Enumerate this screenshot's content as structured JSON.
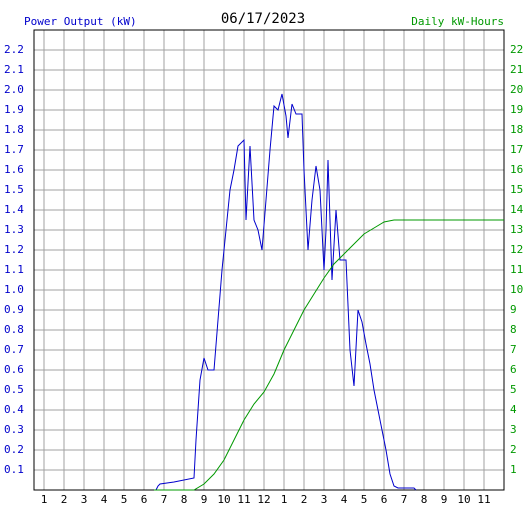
{
  "chart_data": {
    "type": "line",
    "title": "06/17/2023",
    "y_label": "Power Output (kW)",
    "y2_label": "Daily kW-Hours",
    "grid": true,
    "xlim": [
      0.5,
      24
    ],
    "xticks": [
      1,
      2,
      3,
      4,
      5,
      6,
      7,
      8,
      9,
      10,
      11,
      12,
      {
        "value": 13,
        "label": "1"
      },
      {
        "value": 14,
        "label": "2"
      },
      {
        "value": 15,
        "label": "3"
      },
      {
        "value": 16,
        "label": "4"
      },
      {
        "value": 17,
        "label": "5"
      },
      {
        "value": 18,
        "label": "6"
      },
      {
        "value": 19,
        "label": "7"
      },
      {
        "value": 20,
        "label": "8"
      },
      {
        "value": 21,
        "label": "9"
      },
      {
        "value": 22,
        "label": "10"
      },
      {
        "value": 23,
        "label": "11"
      }
    ],
    "ylim": [
      0,
      2.3
    ],
    "yticks": [
      0.1,
      0.2,
      0.3,
      0.4,
      0.5,
      0.6,
      0.7,
      0.8,
      0.9,
      {
        "value": 1,
        "label": "1.0"
      },
      1.1,
      1.2,
      1.3,
      1.4,
      1.5,
      1.6,
      1.7,
      1.8,
      1.9,
      {
        "value": 2,
        "label": "2.0"
      },
      2.1,
      2.2
    ],
    "y2lim": [
      0,
      23
    ],
    "y2ticks": [
      1,
      2,
      3,
      4,
      5,
      6,
      7,
      8,
      9,
      10,
      11,
      12,
      13,
      14,
      15,
      16,
      17,
      18,
      19,
      20,
      21,
      22
    ],
    "series": [
      {
        "name": "Power Output (kW)",
        "color": "#0000cc",
        "x": [
          6.6,
          6.7,
          6.8,
          7.5,
          8.5,
          8.6,
          8.8,
          9,
          9.2,
          9.5,
          9.7,
          9.9,
          10.1,
          10.3,
          10.5,
          10.7,
          11,
          11.1,
          11.3,
          11.5,
          11.7,
          11.9,
          12.1,
          12.3,
          12.5,
          12.7,
          12.9,
          13.1,
          13.2,
          13.4,
          13.6,
          13.9,
          14,
          14.2,
          14.4,
          14.6,
          14.8,
          15,
          15.1,
          15.2,
          15.4,
          15.6,
          15.8,
          16.1,
          16.3,
          16.5,
          16.7,
          16.9,
          17.1,
          17.3,
          17.5,
          17.7,
          17.9,
          18.1,
          18.3,
          18.5,
          18.7,
          19.5,
          19.6
        ],
        "values": [
          0,
          0.02,
          0.03,
          0.04,
          0.06,
          0.25,
          0.55,
          0.66,
          0.6,
          0.6,
          0.85,
          1.1,
          1.3,
          1.5,
          1.6,
          1.72,
          1.75,
          1.35,
          1.72,
          1.35,
          1.3,
          1.2,
          1.45,
          1.7,
          1.92,
          1.9,
          1.98,
          1.87,
          1.76,
          1.93,
          1.88,
          1.88,
          1.6,
          1.2,
          1.45,
          1.62,
          1.5,
          1.1,
          1.3,
          1.65,
          1.05,
          1.4,
          1.15,
          1.15,
          0.7,
          0.52,
          0.9,
          0.84,
          0.73,
          0.63,
          0.5,
          0.4,
          0.3,
          0.2,
          0.08,
          0.02,
          0.01,
          0.01,
          0
        ]
      },
      {
        "name": "Daily kW-Hours",
        "color": "#009900",
        "axis": "y2",
        "x": [
          6.5,
          8.5,
          9,
          9.5,
          10,
          10.5,
          11,
          11.5,
          12,
          12.5,
          13,
          13.5,
          14,
          14.5,
          15,
          15.5,
          16,
          16.5,
          17,
          17.5,
          18,
          18.5,
          24
        ],
        "values": [
          0,
          0,
          0.3,
          0.8,
          1.5,
          2.5,
          3.5,
          4.3,
          4.9,
          5.8,
          7,
          8,
          9,
          9.8,
          10.6,
          11.3,
          11.8,
          12.3,
          12.8,
          13.1,
          13.4,
          13.5,
          13.5
        ]
      }
    ]
  }
}
